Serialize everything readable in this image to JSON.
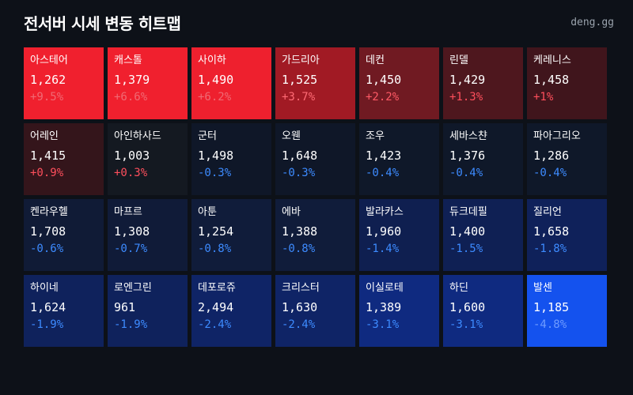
{
  "header": {
    "title": "전서버 시세 변동 히트맵",
    "brand": "deng.gg"
  },
  "tiles": [
    {
      "name": "아스테어",
      "price": "1,262",
      "change": "+9.5%",
      "bg": "#f0202e",
      "change_color": "#f06a74"
    },
    {
      "name": "캐스톨",
      "price": "1,379",
      "change": "+6.6%",
      "bg": "#f0202e",
      "change_color": "#f06a74"
    },
    {
      "name": "사이하",
      "price": "1,490",
      "change": "+6.2%",
      "bg": "#ee202e",
      "change_color": "#f06a74"
    },
    {
      "name": "가드리아",
      "price": "1,525",
      "change": "+3.7%",
      "bg": "#a11a24",
      "change_color": "#ff6b75"
    },
    {
      "name": "데컨",
      "price": "1,450",
      "change": "+2.2%",
      "bg": "#701a22",
      "change_color": "#ff5a66"
    },
    {
      "name": "린델",
      "price": "1,429",
      "change": "+1.3%",
      "bg": "#4e171e",
      "change_color": "#ff4f5c"
    },
    {
      "name": "케레니스",
      "price": "1,458",
      "change": "+1%",
      "bg": "#40151c",
      "change_color": "#ff4f5c"
    },
    {
      "name": "어레인",
      "price": "1,415",
      "change": "+0.9%",
      "bg": "#34151b",
      "change_color": "#ff4f5c"
    },
    {
      "name": "아인하사드",
      "price": "1,003",
      "change": "+0.3%",
      "bg": "#141921",
      "change_color": "#ff4f5c"
    },
    {
      "name": "군터",
      "price": "1,498",
      "change": "-0.3%",
      "bg": "#0f1728",
      "change_color": "#3d8bff"
    },
    {
      "name": "오웬",
      "price": "1,648",
      "change": "-0.3%",
      "bg": "#0f1728",
      "change_color": "#3d8bff"
    },
    {
      "name": "조우",
      "price": "1,423",
      "change": "-0.4%",
      "bg": "#0f1829",
      "change_color": "#3d8bff"
    },
    {
      "name": "세바스챤",
      "price": "1,376",
      "change": "-0.4%",
      "bg": "#0f1829",
      "change_color": "#3d8bff"
    },
    {
      "name": "파아그리오",
      "price": "1,286",
      "change": "-0.4%",
      "bg": "#0f1829",
      "change_color": "#3d8bff"
    },
    {
      "name": "켄라우헬",
      "price": "1,708",
      "change": "-0.6%",
      "bg": "#101b36",
      "change_color": "#3d8bff"
    },
    {
      "name": "마프르",
      "price": "1,308",
      "change": "-0.7%",
      "bg": "#101b38",
      "change_color": "#3d8bff"
    },
    {
      "name": "아툰",
      "price": "1,254",
      "change": "-0.8%",
      "bg": "#101c3a",
      "change_color": "#3d8bff"
    },
    {
      "name": "에바",
      "price": "1,388",
      "change": "-0.8%",
      "bg": "#101c3a",
      "change_color": "#3d8bff"
    },
    {
      "name": "발라카스",
      "price": "1,960",
      "change": "-1.4%",
      "bg": "#0f1f50",
      "change_color": "#3d8bff"
    },
    {
      "name": "듀크데필",
      "price": "1,400",
      "change": "-1.5%",
      "bg": "#0f2054",
      "change_color": "#3d8bff"
    },
    {
      "name": "질리언",
      "price": "1,658",
      "change": "-1.8%",
      "bg": "#0f215a",
      "change_color": "#3d8bff"
    },
    {
      "name": "하이네",
      "price": "1,624",
      "change": "-1.9%",
      "bg": "#0f225c",
      "change_color": "#3d8bff"
    },
    {
      "name": "로엔그린",
      "price": "961",
      "change": "-1.9%",
      "bg": "#0f225c",
      "change_color": "#3d8bff"
    },
    {
      "name": "데포로쥬",
      "price": "2,494",
      "change": "-2.4%",
      "bg": "#0f2466",
      "change_color": "#3d8bff"
    },
    {
      "name": "크리스터",
      "price": "1,630",
      "change": "-2.4%",
      "bg": "#0f2466",
      "change_color": "#3d8bff"
    },
    {
      "name": "이실로테",
      "price": "1,389",
      "change": "-3.1%",
      "bg": "#0f2a80",
      "change_color": "#3d8bff"
    },
    {
      "name": "하딘",
      "price": "1,600",
      "change": "-3.1%",
      "bg": "#0f2a80",
      "change_color": "#3d8bff"
    },
    {
      "name": "발센",
      "price": "1,185",
      "change": "-4.8%",
      "bg": "#1452ee",
      "change_color": "#6e9bff"
    }
  ]
}
